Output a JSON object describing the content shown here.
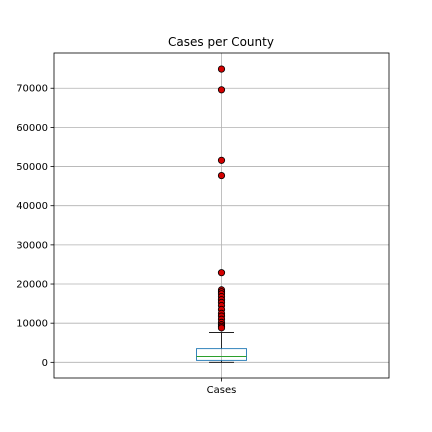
{
  "chart_data": {
    "type": "box",
    "title": "Cases per County",
    "xlabel": "",
    "ylabel": "",
    "categories": [
      "Cases"
    ],
    "ylim": [
      -4000,
      79000
    ],
    "yticks": [
      0,
      10000,
      20000,
      30000,
      40000,
      50000,
      60000,
      70000
    ],
    "grid": true,
    "box": {
      "q1": 500,
      "median": 1500,
      "q3": 3500,
      "whisker_low": 0,
      "whisker_high": 7600
    },
    "outliers": [
      74900,
      69600,
      51600,
      47700,
      22900,
      18500,
      18000,
      17500,
      16800,
      16000,
      15300,
      14500,
      13500,
      12500,
      11800,
      11000,
      10200,
      9600,
      9200,
      8800
    ],
    "colors": {
      "box": "#1f77b4",
      "median": "#2ca02c",
      "outlier_fill": "#d40000",
      "grid": "#b0b0b0"
    }
  }
}
